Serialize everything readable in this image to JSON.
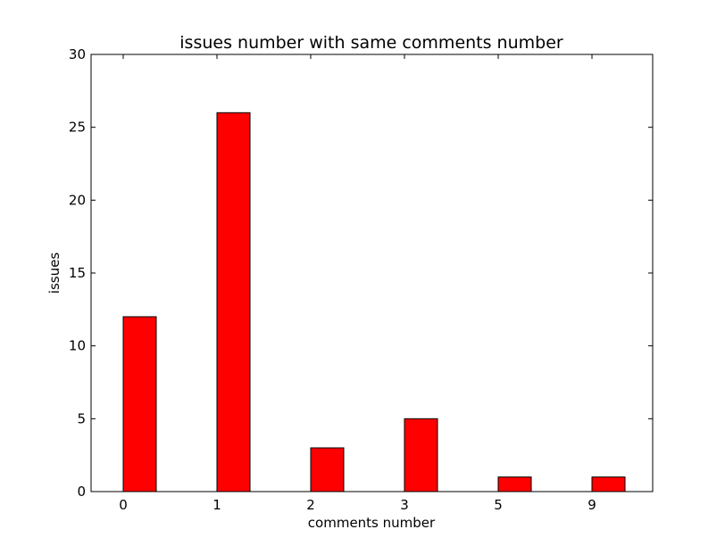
{
  "chart_data": {
    "type": "bar",
    "title": "issues number with same comments number",
    "xlabel": "comments number",
    "ylabel": "issues",
    "categories": [
      "0",
      "1",
      "2",
      "3",
      "5",
      "9"
    ],
    "values": [
      12,
      26,
      3,
      5,
      1,
      1
    ],
    "ylim": [
      0,
      30
    ],
    "yticks": [
      "0",
      "5",
      "10",
      "15",
      "20",
      "25",
      "30"
    ],
    "grid": false,
    "legend": "none",
    "bar_color": "#ff0000",
    "edge_color": "#000000"
  }
}
